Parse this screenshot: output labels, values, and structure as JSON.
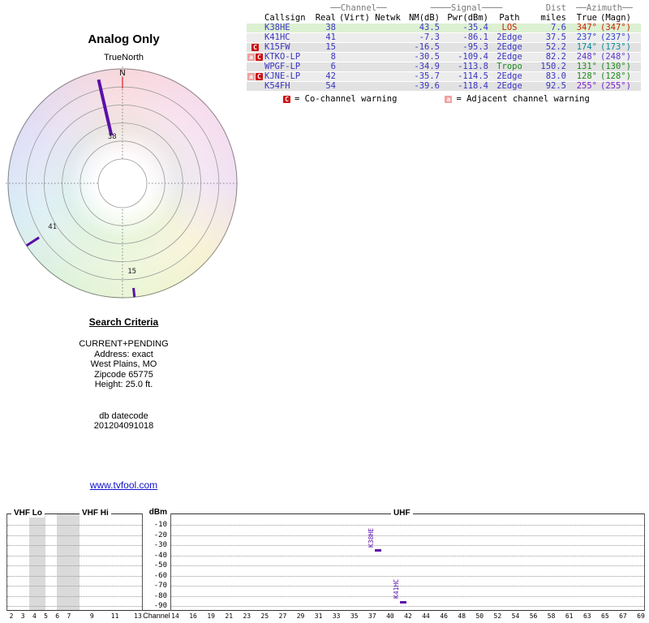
{
  "criteria": {
    "heading": "Search Criteria",
    "lines": [
      "CURRENT+PENDING",
      "Address: exact",
      "West Plains, MO",
      "Zipcode 65775",
      "Height: 25.0 ft."
    ],
    "datecode_label": "db datecode",
    "datecode_value": "201204091018"
  },
  "footer_link": "www.tvfool.com",
  "colors": {
    "value_blue": "#3a35c0",
    "marker_purple": "#5a10a8",
    "link_blue": "#1111cc"
  },
  "table": {
    "groups": {
      "channel": "──Channel──",
      "signal": "────Signal────",
      "dist": "Dist",
      "azimuth": "──Azimuth──"
    },
    "columns": {
      "callsign": "Callsign",
      "real": "Real",
      "virt": "(Virt)",
      "netwk": "Netwk",
      "nm": "NM(dB)",
      "pwr": "Pwr(dBm)",
      "path": "Path",
      "miles": "miles",
      "true": "True",
      "magn": "(Magn)"
    },
    "warning_styles": {
      "C": {
        "bg": "#cc1111",
        "fg": "#ffffff",
        "name": "co-channel-warning-icon"
      },
      "a": {
        "bg": "#f0a0a0",
        "fg": "#ffffff",
        "name": "adjacent-channel-warning-icon"
      }
    },
    "rows": [
      {
        "warnings": [],
        "callsign": "K38HE",
        "real": "38",
        "virt": "",
        "netwk": "",
        "nm_db": "43.5",
        "pwr_dbm": "-35.4",
        "path": "LOS",
        "path_color": "#cc2200",
        "miles": "7.6",
        "az_true": "347°",
        "az_magn": "(347°)",
        "az_color": "#cc2200",
        "bg": "#dcf0d2"
      },
      {
        "warnings": [],
        "callsign": "K41HC",
        "real": "41",
        "virt": "",
        "netwk": "",
        "nm_db": "-7.3",
        "pwr_dbm": "-86.1",
        "path": "2Edge",
        "path_color": "#3a35c0",
        "miles": "37.5",
        "az_true": "237°",
        "az_magn": "(237°)",
        "az_color": "#2a3fd0",
        "bg": "#ececec"
      },
      {
        "warnings": [
          "C"
        ],
        "callsign": "K15FW",
        "real": "15",
        "virt": "",
        "netwk": "",
        "nm_db": "-16.5",
        "pwr_dbm": "-95.3",
        "path": "2Edge",
        "path_color": "#3a35c0",
        "miles": "52.2",
        "az_true": "174°",
        "az_magn": "(173°)",
        "az_color": "#0a8a99",
        "bg": "#e2e2e2"
      },
      {
        "warnings": [
          "a",
          "C"
        ],
        "callsign": "KTKO-LP",
        "real": "8",
        "virt": "",
        "netwk": "",
        "nm_db": "-30.5",
        "pwr_dbm": "-109.4",
        "path": "2Edge",
        "path_color": "#3a35c0",
        "miles": "82.2",
        "az_true": "248°",
        "az_magn": "(248°)",
        "az_color": "#5a35cc",
        "bg": "#ececec"
      },
      {
        "warnings": [],
        "callsign": "WPGF-LP",
        "real": "6",
        "virt": "",
        "netwk": "",
        "nm_db": "-34.9",
        "pwr_dbm": "-113.8",
        "path": "Tropo",
        "path_color": "#1a8a1a",
        "miles": "150.2",
        "az_true": "131°",
        "az_magn": "(130°)",
        "az_color": "#1a8a1a",
        "bg": "#e2e2e2"
      },
      {
        "warnings": [
          "a",
          "C"
        ],
        "callsign": "KJNE-LP",
        "real": "42",
        "virt": "",
        "netwk": "",
        "nm_db": "-35.7",
        "pwr_dbm": "-114.5",
        "path": "2Edge",
        "path_color": "#3a35c0",
        "miles": "83.0",
        "az_true": "128°",
        "az_magn": "(128°)",
        "az_color": "#1a8a1a",
        "bg": "#ececec"
      },
      {
        "warnings": [],
        "callsign": "K54FH",
        "real": "54",
        "virt": "",
        "netwk": "",
        "nm_db": "-39.6",
        "pwr_dbm": "-118.4",
        "path": "2Edge",
        "path_color": "#3a35c0",
        "miles": "92.5",
        "az_true": "255°",
        "az_magn": "(255°)",
        "az_color": "#7a22cc",
        "bg": "#e2e2e2"
      }
    ],
    "legend": [
      {
        "symbol": "C",
        "meaning": "= Co-channel warning"
      },
      {
        "symbol": "a",
        "meaning": "= Adjacent channel warning"
      }
    ]
  },
  "chart_data": [
    {
      "type": "polar-radar",
      "title": "Analog Only",
      "north_label": "TrueNorth",
      "north_letter": "N",
      "ring_count": 5,
      "spokes": [
        {
          "callsign": "K38HE",
          "channel": "38",
          "azimuth_deg": 347,
          "r_inner": 0.43,
          "r_outer": 0.93,
          "label_r": 0.4,
          "stroke_w": 4
        },
        {
          "callsign": "K41HC",
          "channel": "41",
          "azimuth_deg": 237,
          "r_inner": 0.87,
          "r_outer": 1.0,
          "label_r": 0.73,
          "stroke_w": 3
        },
        {
          "callsign": "K15FW",
          "channel": "15",
          "azimuth_deg": 174,
          "r_inner": 0.92,
          "r_outer": 1.0,
          "label_r": 0.79,
          "stroke_w": 3
        }
      ]
    },
    {
      "type": "spectrum",
      "ylabel": "dBm",
      "xlabel": "Channel",
      "ylim": [
        -95,
        -5
      ],
      "y_ticks": [
        "-10",
        "-20",
        "-30",
        "-40",
        "-50",
        "-60",
        "-70",
        "-80",
        "-90"
      ],
      "bands": [
        {
          "label": "VHF Lo"
        },
        {
          "label": "VHF Hi"
        },
        {
          "label": "UHF"
        }
      ],
      "vhf_ticks": [
        2,
        3,
        4,
        5,
        6,
        7,
        9,
        11,
        13
      ],
      "uhf_channel_range": [
        14,
        69
      ],
      "uhf_tick_labels": [
        "14",
        "16",
        "19",
        "21",
        "23",
        "25",
        "27",
        "29",
        "31",
        "33",
        "35",
        "37",
        "40",
        "42",
        "44",
        "46",
        "48",
        "50",
        "52",
        "54",
        "56",
        "58",
        "61",
        "63",
        "65",
        "67",
        "69"
      ],
      "markers": [
        {
          "label": "K38HE",
          "channel": 38,
          "dbm": -35.4
        },
        {
          "label": "K41HC",
          "channel": 41,
          "dbm": -86.1
        }
      ]
    }
  ]
}
